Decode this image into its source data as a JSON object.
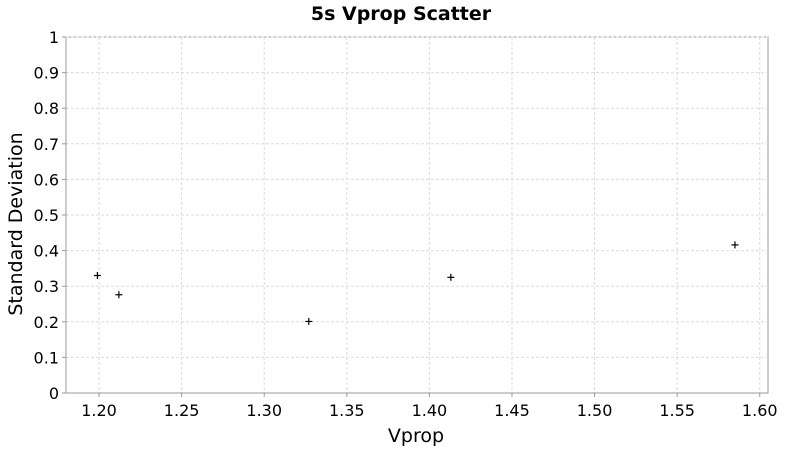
{
  "chart_data": {
    "type": "scatter",
    "title": "5s Vprop Scatter",
    "xlabel": "Vprop",
    "ylabel": "Standard Deviation",
    "xlim": [
      1.18,
      1.605
    ],
    "ylim": [
      0,
      1
    ],
    "xticks": [
      "1.20",
      "1.25",
      "1.30",
      "1.35",
      "1.40",
      "1.45",
      "1.50",
      "1.55",
      "1.60"
    ],
    "yticks": [
      "0",
      "0.1",
      "0.2",
      "0.3",
      "0.4",
      "0.5",
      "0.6",
      "0.7",
      "0.8",
      "0.9",
      "1"
    ],
    "grid": true,
    "marker": "plus",
    "colors": {
      "marker": "#000000",
      "grid": "#dcdcdc",
      "frame": "#9a9a9a"
    },
    "series": [
      {
        "points": [
          {
            "x": 1.199,
            "y": 0.33
          },
          {
            "x": 1.212,
            "y": 0.276
          },
          {
            "x": 1.327,
            "y": 0.201
          },
          {
            "x": 1.413,
            "y": 0.325
          },
          {
            "x": 1.585,
            "y": 0.416
          }
        ]
      }
    ]
  }
}
